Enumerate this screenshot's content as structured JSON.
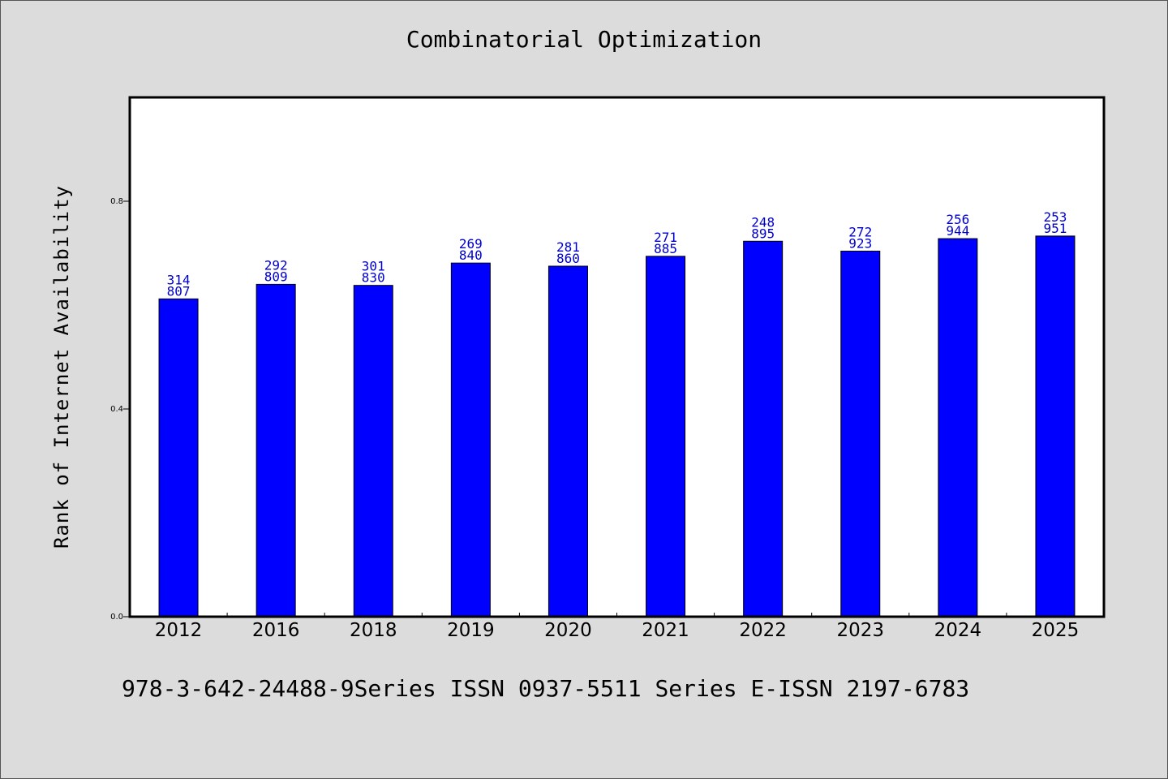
{
  "colors": {
    "background": "#dcdcdc",
    "plot_background": "#ffffff",
    "bar": "#0000ff",
    "bar_label": "#0000cc"
  },
  "footer": "978-3-642-24488-9Series ISSN 0937-5511 Series E-ISSN 2197-6783",
  "chart_data": {
    "type": "bar",
    "title": "Combinatorial Optimization",
    "xlabel": "",
    "ylabel": "Rank of Internet Availability",
    "ylim": [
      0,
      1.0
    ],
    "yticks": [
      "0.0",
      "0.4",
      "0.8"
    ],
    "ytick_values": [
      0.0,
      0.4,
      0.8
    ],
    "grid": false,
    "categories": [
      "2012",
      "2016",
      "2018",
      "2019",
      "2020",
      "2021",
      "2022",
      "2023",
      "2024",
      "2025"
    ],
    "values": [
      0.612,
      0.64,
      0.638,
      0.681,
      0.675,
      0.694,
      0.723,
      0.704,
      0.728,
      0.733
    ],
    "bar_labels": [
      [
        "314",
        "807"
      ],
      [
        "292",
        "809"
      ],
      [
        "301",
        "830"
      ],
      [
        "269",
        "840"
      ],
      [
        "281",
        "860"
      ],
      [
        "271",
        "885"
      ],
      [
        "248",
        "895"
      ],
      [
        "272",
        "923"
      ],
      [
        "256",
        "944"
      ],
      [
        "253",
        "951"
      ]
    ]
  }
}
